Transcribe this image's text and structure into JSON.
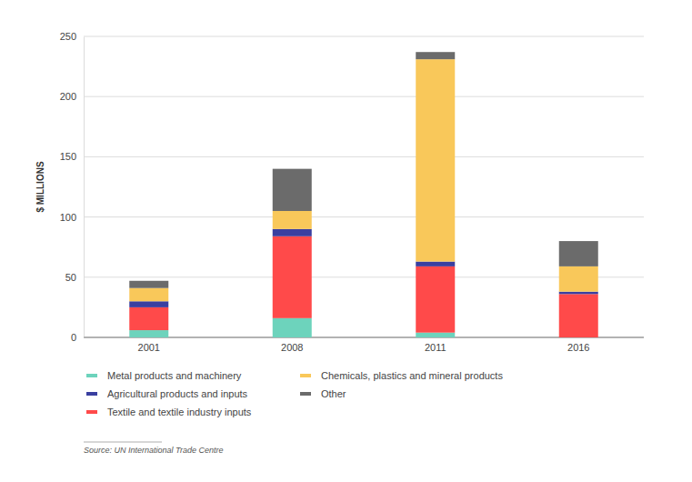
{
  "chart_data": {
    "type": "bar",
    "stacked": true,
    "grid": true,
    "y_label": "$ MILLIONS",
    "source": "Source: UN International Trade Centre",
    "categories": [
      "2001",
      "2008",
      "2011",
      "2016"
    ],
    "ylim": [
      0,
      250
    ],
    "yticks": [
      0,
      50,
      100,
      150,
      200,
      250
    ],
    "series": [
      {
        "name": "Metal products and machinery",
        "color": "#6dd3bc",
        "values": [
          6,
          16,
          4,
          0
        ]
      },
      {
        "name": "Textile and textile industry inputs",
        "color": "#ff4a4a",
        "values": [
          19,
          68,
          55,
          36
        ]
      },
      {
        "name": "Agricultural products and inputs",
        "color": "#3a3fa0",
        "values": [
          5,
          6,
          4,
          2
        ]
      },
      {
        "name": "Chemicals, plastics and mineral products",
        "color": "#f9c85a",
        "values": [
          11,
          15,
          168,
          21
        ]
      },
      {
        "name": "Other",
        "color": "#6b6b6b",
        "values": [
          6,
          35,
          6,
          21
        ]
      }
    ]
  }
}
